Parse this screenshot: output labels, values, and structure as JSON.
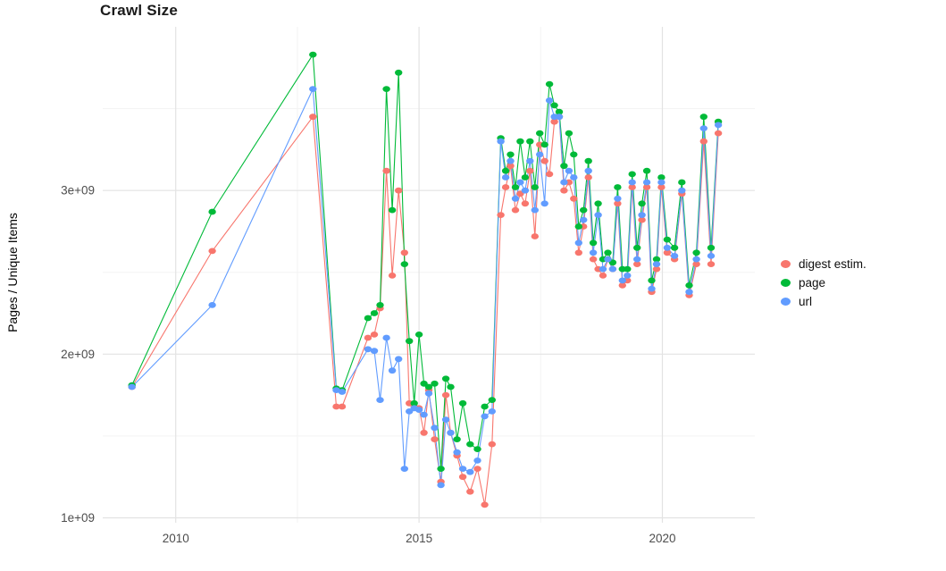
{
  "page": {
    "title": "Crawl Size"
  },
  "chart_data": {
    "type": "line",
    "title": "Crawl Size",
    "xlabel": "",
    "ylabel": "Pages / Unique Items",
    "legend_position": "right",
    "grid": true,
    "x_ticks": [
      2010,
      2015,
      2020
    ],
    "x_tick_labels": [
      "2010",
      "2015",
      "2020"
    ],
    "x_minor_ticks": [
      2012.5,
      2017.5
    ],
    "y_ticks": [
      1000000000.0,
      2000000000.0,
      3000000000.0
    ],
    "y_tick_labels": [
      "1e+09",
      "2e+09",
      "3e+09"
    ],
    "y_minor_ticks": [
      1500000000.0,
      2500000000.0,
      3500000000.0
    ],
    "x_range": [
      2008.5,
      2021.9
    ],
    "y_range": [
      970000000.0,
      4000000000.0
    ],
    "x_unit": "year",
    "y_unit": "count",
    "x": [
      2009.1,
      2010.75,
      2012.82,
      2013.3,
      2013.42,
      2013.95,
      2014.08,
      2014.2,
      2014.33,
      2014.45,
      2014.58,
      2014.7,
      2014.8,
      2014.9,
      2015.0,
      2015.1,
      2015.2,
      2015.32,
      2015.45,
      2015.55,
      2015.65,
      2015.78,
      2015.9,
      2016.05,
      2016.2,
      2016.35,
      2016.5,
      2016.68,
      2016.78,
      2016.88,
      2016.98,
      2017.08,
      2017.18,
      2017.28,
      2017.38,
      2017.48,
      2017.58,
      2017.68,
      2017.78,
      2017.88,
      2017.98,
      2018.08,
      2018.18,
      2018.28,
      2018.38,
      2018.48,
      2018.58,
      2018.68,
      2018.78,
      2018.88,
      2018.98,
      2019.08,
      2019.18,
      2019.28,
      2019.38,
      2019.48,
      2019.58,
      2019.68,
      2019.78,
      2019.88,
      2019.98,
      2020.1,
      2020.25,
      2020.4,
      2020.55,
      2020.7,
      2020.85,
      2021.0,
      2021.15
    ],
    "series": [
      {
        "name": "digest estim.",
        "color": "#F8766D",
        "values": [
          1800000000.0,
          2630000000.0,
          3450000000.0,
          1680000000.0,
          1680000000.0,
          2100000000.0,
          2120000000.0,
          2280000000.0,
          3120000000.0,
          2480000000.0,
          3000000000.0,
          2620000000.0,
          1700000000.0,
          1680000000.0,
          1670000000.0,
          1520000000.0,
          1780000000.0,
          1480000000.0,
          1220000000.0,
          1750000000.0,
          1520000000.0,
          1380000000.0,
          1250000000.0,
          1160000000.0,
          1300000000.0,
          1080000000.0,
          1450000000.0,
          2850000000.0,
          3020000000.0,
          3150000000.0,
          2880000000.0,
          2980000000.0,
          2920000000.0,
          3120000000.0,
          2720000000.0,
          3280000000.0,
          3180000000.0,
          3100000000.0,
          3420000000.0,
          3450000000.0,
          3000000000.0,
          3050000000.0,
          2950000000.0,
          2620000000.0,
          2780000000.0,
          3080000000.0,
          2580000000.0,
          2520000000.0,
          2480000000.0,
          2580000000.0,
          2520000000.0,
          2920000000.0,
          2420000000.0,
          2450000000.0,
          3020000000.0,
          2550000000.0,
          2820000000.0,
          3020000000.0,
          2380000000.0,
          2520000000.0,
          3020000000.0,
          2620000000.0,
          2580000000.0,
          2980000000.0,
          2360000000.0,
          2550000000.0,
          3300000000.0,
          2550000000.0,
          3350000000.0
        ]
      },
      {
        "name": "page",
        "color": "#00BA38",
        "values": [
          1810000000.0,
          2870000000.0,
          3830000000.0,
          1790000000.0,
          1780000000.0,
          2220000000.0,
          2250000000.0,
          2300000000.0,
          3620000000.0,
          2880000000.0,
          3720000000.0,
          2550000000.0,
          2080000000.0,
          1700000000.0,
          2120000000.0,
          1820000000.0,
          1800000000.0,
          1820000000.0,
          1300000000.0,
          1850000000.0,
          1800000000.0,
          1480000000.0,
          1700000000.0,
          1450000000.0,
          1420000000.0,
          1680000000.0,
          1720000000.0,
          3320000000.0,
          3120000000.0,
          3220000000.0,
          3020000000.0,
          3300000000.0,
          3080000000.0,
          3300000000.0,
          3020000000.0,
          3350000000.0,
          3280000000.0,
          3650000000.0,
          3520000000.0,
          3480000000.0,
          3150000000.0,
          3350000000.0,
          3220000000.0,
          2780000000.0,
          2880000000.0,
          3180000000.0,
          2680000000.0,
          2920000000.0,
          2580000000.0,
          2620000000.0,
          2560000000.0,
          3020000000.0,
          2520000000.0,
          2520000000.0,
          3100000000.0,
          2650000000.0,
          2920000000.0,
          3120000000.0,
          2450000000.0,
          2580000000.0,
          3080000000.0,
          2700000000.0,
          2650000000.0,
          3050000000.0,
          2420000000.0,
          2620000000.0,
          3450000000.0,
          2650000000.0,
          3420000000.0
        ]
      },
      {
        "name": "url",
        "color": "#619CFF",
        "values": [
          1800000000.0,
          2300000000.0,
          3620000000.0,
          1780000000.0,
          1770000000.0,
          2030000000.0,
          2020000000.0,
          1720000000.0,
          2100000000.0,
          1900000000.0,
          1970000000.0,
          1300000000.0,
          1650000000.0,
          1670000000.0,
          1660000000.0,
          1630000000.0,
          1760000000.0,
          1550000000.0,
          1200000000.0,
          1600000000.0,
          1520000000.0,
          1400000000.0,
          1300000000.0,
          1280000000.0,
          1350000000.0,
          1620000000.0,
          1650000000.0,
          3300000000.0,
          3080000000.0,
          3180000000.0,
          2950000000.0,
          3050000000.0,
          3000000000.0,
          3180000000.0,
          2880000000.0,
          3220000000.0,
          2920000000.0,
          3550000000.0,
          3450000000.0,
          3450000000.0,
          3050000000.0,
          3120000000.0,
          3080000000.0,
          2680000000.0,
          2820000000.0,
          3120000000.0,
          2620000000.0,
          2850000000.0,
          2520000000.0,
          2580000000.0,
          2520000000.0,
          2950000000.0,
          2450000000.0,
          2480000000.0,
          3050000000.0,
          2580000000.0,
          2850000000.0,
          3050000000.0,
          2400000000.0,
          2550000000.0,
          3050000000.0,
          2650000000.0,
          2600000000.0,
          3000000000.0,
          2380000000.0,
          2580000000.0,
          3380000000.0,
          2600000000.0,
          3400000000.0
        ]
      }
    ]
  }
}
